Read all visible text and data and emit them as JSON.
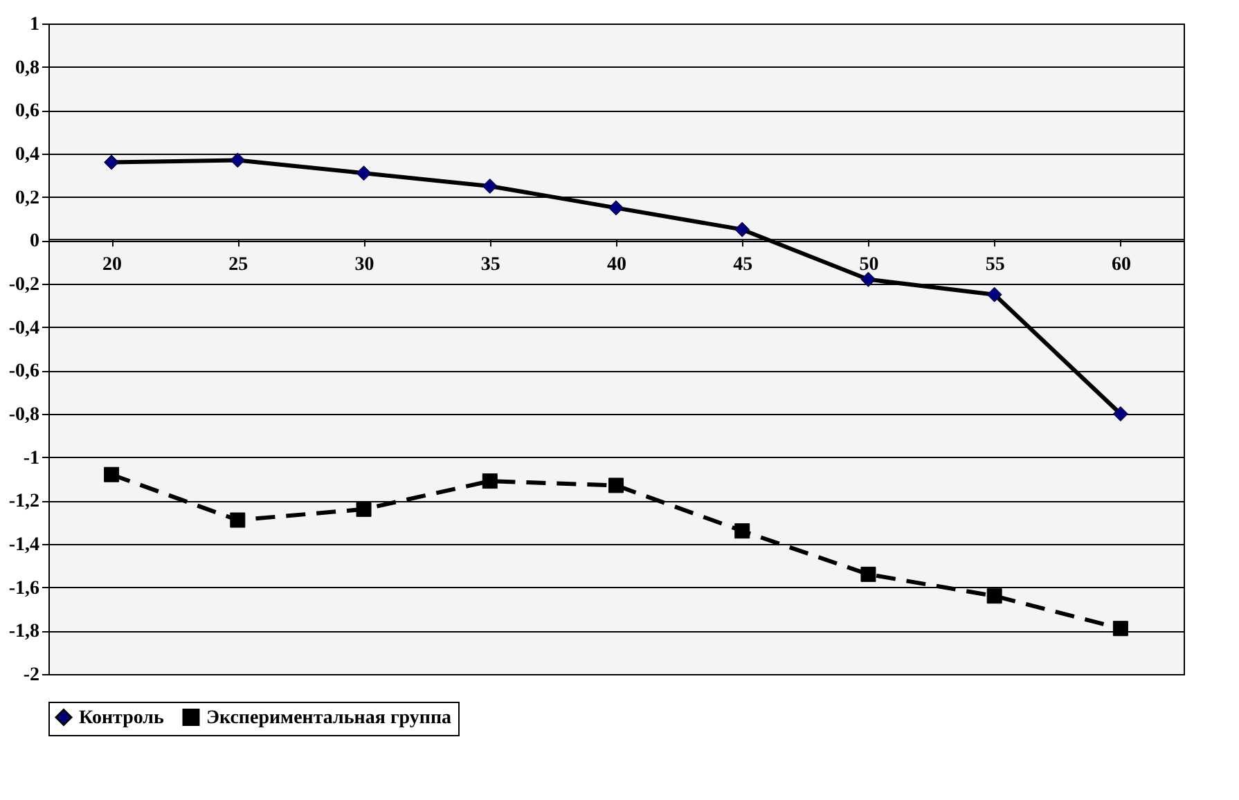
{
  "chart_data": {
    "type": "line",
    "categories": [
      "20",
      "25",
      "30",
      "35",
      "40",
      "45",
      "50",
      "55",
      "60"
    ],
    "series": [
      {
        "name": "Контроль",
        "color": "#000080",
        "marker": "diamond",
        "line_style": "solid",
        "values": [
          0.36,
          0.37,
          0.31,
          0.25,
          0.15,
          0.05,
          -0.18,
          -0.25,
          -0.8
        ]
      },
      {
        "name": "Экспериментальная группа",
        "color": "#000000",
        "marker": "square",
        "line_style": "dashed",
        "values": [
          -1.08,
          -1.29,
          -1.24,
          -1.11,
          -1.13,
          -1.34,
          -1.54,
          -1.64,
          -1.79
        ]
      }
    ],
    "ylim": [
      -2,
      1
    ],
    "yticks": [
      {
        "value": -2,
        "label": "-2"
      },
      {
        "value": -1.8,
        "label": "-1,8"
      },
      {
        "value": -1.6,
        "label": "-1,6"
      },
      {
        "value": -1.4,
        "label": "-1,4"
      },
      {
        "value": -1.2,
        "label": "-1,2"
      },
      {
        "value": -1,
        "label": "-1"
      },
      {
        "value": -0.8,
        "label": "-0,8"
      },
      {
        "value": -0.6,
        "label": "-0,6"
      },
      {
        "value": -0.4,
        "label": "-0,4"
      },
      {
        "value": -0.2,
        "label": "-0,2"
      },
      {
        "value": 0,
        "label": "0"
      },
      {
        "value": 0.2,
        "label": "0,2"
      },
      {
        "value": 0.4,
        "label": "0,4"
      },
      {
        "value": 0.6,
        "label": "0,6"
      },
      {
        "value": 0.8,
        "label": "0,8"
      },
      {
        "value": 1,
        "label": "1"
      }
    ],
    "grid": "y",
    "legend": "bottom"
  }
}
